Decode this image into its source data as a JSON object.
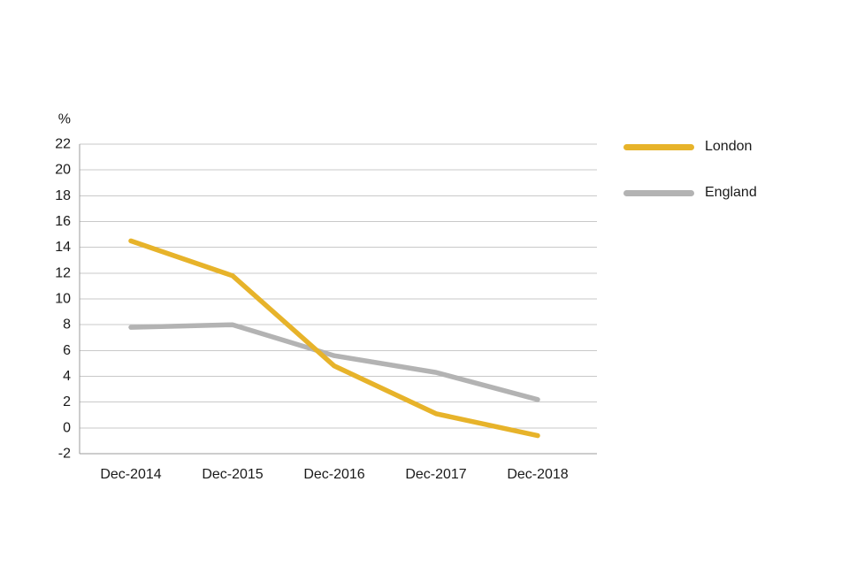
{
  "chart_data": {
    "type": "line",
    "unit_label": "%",
    "categories": [
      "Dec-2014",
      "Dec-2015",
      "Dec-2016",
      "Dec-2017",
      "Dec-2018"
    ],
    "series": [
      {
        "name": "London",
        "color": "#e7b32a",
        "values": [
          14.5,
          11.8,
          4.8,
          1.1,
          -0.6
        ]
      },
      {
        "name": "England",
        "color": "#b3b3b3",
        "values": [
          7.8,
          8.0,
          5.6,
          4.3,
          2.2
        ]
      }
    ],
    "ylim": [
      -2,
      22
    ],
    "ytick_step": 2,
    "grid": true,
    "legend_position": "right",
    "grid_color": "#c9c9c9",
    "axis_color": "#9b9b9b",
    "text_color": "#1a1a1a"
  }
}
